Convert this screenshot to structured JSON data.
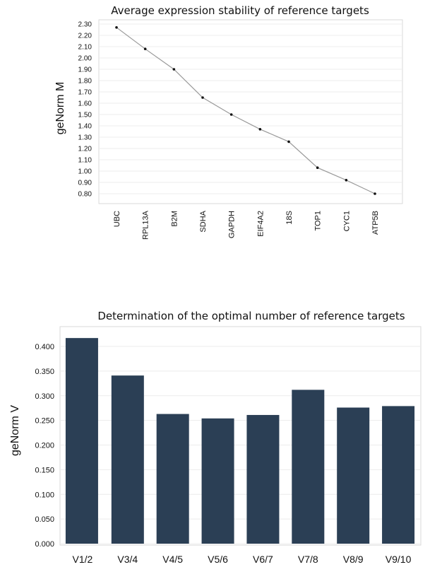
{
  "chart_data": [
    {
      "type": "line",
      "title": "Average expression stability of reference targets",
      "xlabel": "",
      "ylabel": "geNorm M",
      "ylim": [
        0.8,
        2.3
      ],
      "yticks": [
        "2.30",
        "2.20",
        "2.10",
        "2.00",
        "1.90",
        "1.80",
        "1.70",
        "1.60",
        "1.50",
        "1.40",
        "1.30",
        "1.20",
        "1.10",
        "1.00",
        "0.90",
        "0.80"
      ],
      "categories": [
        "UBC",
        "RPL13A",
        "B2M",
        "SDHA",
        "GAPDH",
        "EIF4A2",
        "18S",
        "TOP1",
        "CYC1",
        "ATP5B"
      ],
      "values": [
        2.27,
        2.08,
        1.9,
        1.65,
        1.5,
        1.37,
        1.26,
        1.03,
        0.92,
        0.8
      ],
      "grid": true,
      "color": "#999999"
    },
    {
      "type": "bar",
      "title": "Determination of the optimal number of reference targets",
      "xlabel": "",
      "ylabel": "geNorm V",
      "ylim": [
        0,
        0.42
      ],
      "yticks": [
        "0.400",
        "0.350",
        "0.300",
        "0.250",
        "0.200",
        "0.150",
        "0.100",
        "0.050",
        "0.000"
      ],
      "categories": [
        "V1/2",
        "V3/4",
        "V4/5",
        "V5/6",
        "V6/7",
        "V7/8",
        "V8/9",
        "V9/10"
      ],
      "values": [
        0.417,
        0.341,
        0.263,
        0.254,
        0.261,
        0.312,
        0.276,
        0.279
      ],
      "grid": true,
      "color": "#2b3f55"
    }
  ]
}
